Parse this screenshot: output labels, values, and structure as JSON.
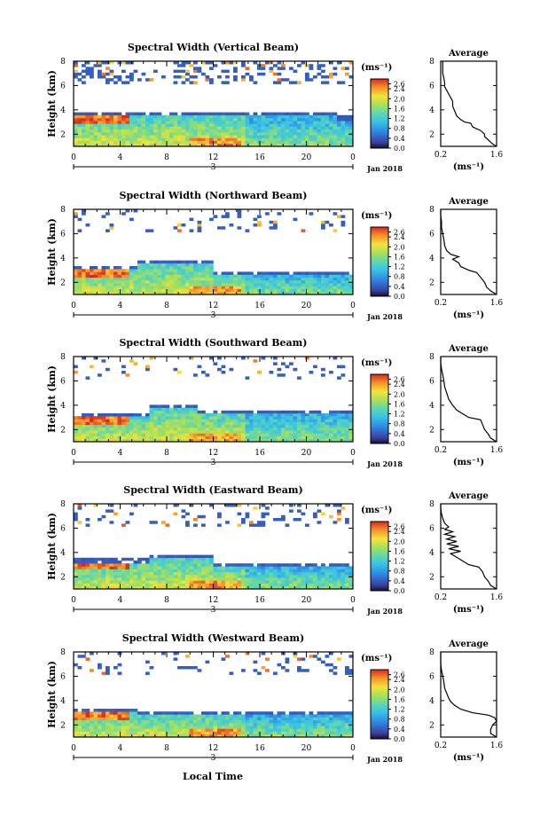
{
  "figure": {
    "x_axis_label": "Local Time",
    "date_label": "Jan 2018",
    "x_marker_label": "3",
    "colorbar_unit": "(ms⁻¹)",
    "avg_title": "Average",
    "avg_unit": "(ms⁻¹)"
  },
  "chart_data": [
    {
      "type": "heatmap",
      "title": "Spectral Width (Vertical Beam)",
      "ylabel": "Height (km)",
      "xticks": [
        "0",
        "4",
        "8",
        "12",
        "16",
        "20",
        "0"
      ],
      "yticks": [
        "2",
        "4",
        "6",
        "8"
      ],
      "colorbar_ticks": [
        "2.6",
        "2.4",
        "2.0",
        "1.6",
        "1.2",
        "0.8",
        "0.4",
        "0.0"
      ],
      "colorbar_range": [
        0.0,
        2.8
      ],
      "average_profile": {
        "xticks": [
          "0.2",
          "1.6"
        ],
        "yticks": [
          "2",
          "4",
          "6",
          "8"
        ],
        "xlim": [
          0.2,
          1.6
        ],
        "ylim": [
          1,
          8
        ],
        "height_km": [
          1.0,
          1.2,
          1.5,
          1.8,
          2.0,
          2.3,
          2.6,
          2.9,
          3.0,
          3.2,
          3.5,
          3.9,
          4.3,
          4.7,
          5.0,
          5.3,
          5.6,
          5.9,
          6.2,
          6.6,
          7.0,
          7.5,
          8.0
        ],
        "width_ms": [
          1.6,
          1.5,
          1.4,
          1.3,
          1.3,
          1.2,
          1.0,
          0.95,
          0.8,
          0.7,
          0.6,
          0.55,
          0.5,
          0.5,
          0.45,
          0.4,
          0.35,
          0.3,
          0.3,
          0.28,
          0.25,
          0.25,
          0.25
        ]
      }
    },
    {
      "type": "heatmap",
      "title": "Spectral Width (Northward Beam)",
      "ylabel": "Height (km)",
      "xticks": [
        "0",
        "4",
        "8",
        "12",
        "16",
        "20",
        "0"
      ],
      "yticks": [
        "2",
        "4",
        "6",
        "8"
      ],
      "colorbar_ticks": [
        "2.6",
        "2.4",
        "2.0",
        "1.6",
        "1.2",
        "0.8",
        "0.4",
        "0.0"
      ],
      "colorbar_range": [
        0.0,
        2.8
      ],
      "average_profile": {
        "xticks": [
          "0.2",
          "1.6"
        ],
        "yticks": [
          "2",
          "4",
          "6",
          "8"
        ],
        "xlim": [
          0.2,
          1.6
        ],
        "ylim": [
          1,
          8
        ],
        "height_km": [
          1.0,
          1.3,
          1.6,
          2.0,
          2.4,
          2.8,
          3.0,
          3.3,
          3.6,
          3.9,
          4.1,
          4.3,
          4.6,
          5.0,
          5.5,
          6.0,
          6.5,
          7.0,
          7.5,
          8.0
        ],
        "width_ms": [
          1.6,
          1.45,
          1.35,
          1.3,
          1.2,
          1.1,
          0.9,
          0.7,
          0.65,
          0.5,
          0.65,
          0.45,
          0.35,
          0.3,
          0.28,
          0.25,
          0.22,
          0.22,
          0.2,
          0.2
        ]
      }
    },
    {
      "type": "heatmap",
      "title": "Spectral Width (Southward Beam)",
      "ylabel": "Height (km)",
      "xticks": [
        "0",
        "4",
        "8",
        "12",
        "16",
        "20",
        "0"
      ],
      "yticks": [
        "2",
        "4",
        "6",
        "8"
      ],
      "colorbar_ticks": [
        "2.6",
        "2.4",
        "2.0",
        "1.6",
        "1.2",
        "0.8",
        "0.4",
        "0.0"
      ],
      "colorbar_range": [
        0.0,
        2.8
      ],
      "average_profile": {
        "xticks": [
          "0.2",
          "1.6"
        ],
        "yticks": [
          "2",
          "4",
          "6",
          "8"
        ],
        "xlim": [
          0.2,
          1.6
        ],
        "ylim": [
          1,
          8
        ],
        "height_km": [
          1.0,
          1.3,
          1.6,
          2.0,
          2.4,
          2.8,
          3.0,
          3.3,
          3.6,
          4.0,
          4.5,
          5.0,
          5.5,
          6.0,
          6.5,
          7.0,
          7.5,
          8.0
        ],
        "width_ms": [
          1.6,
          1.45,
          1.4,
          1.3,
          1.25,
          1.2,
          0.9,
          0.75,
          0.6,
          0.5,
          0.4,
          0.35,
          0.3,
          0.28,
          0.25,
          0.22,
          0.2,
          0.2
        ]
      }
    },
    {
      "type": "heatmap",
      "title": "Spectral Width (Eastward Beam)",
      "ylabel": "Height (km)",
      "xticks": [
        "0",
        "4",
        "8",
        "12",
        "16",
        "20",
        "0"
      ],
      "yticks": [
        "2",
        "4",
        "6",
        "8"
      ],
      "colorbar_ticks": [
        "2.6",
        "2.4",
        "2.0",
        "1.6",
        "1.2",
        "0.8",
        "0.4",
        "0.0"
      ],
      "colorbar_range": [
        0.0,
        2.8
      ],
      "average_profile": {
        "xticks": [
          "0.2",
          "1.6"
        ],
        "yticks": [
          "2",
          "4",
          "6",
          "8"
        ],
        "xlim": [
          0.2,
          1.6
        ],
        "ylim": [
          1,
          8
        ],
        "height_km": [
          1.0,
          1.3,
          1.6,
          2.0,
          2.4,
          2.8,
          3.0,
          3.3,
          3.6,
          3.9,
          4.1,
          4.3,
          4.5,
          4.7,
          4.9,
          5.1,
          5.3,
          5.5,
          5.7,
          5.9,
          6.1,
          6.4,
          6.8,
          7.2,
          7.6,
          8.0
        ],
        "width_ms": [
          1.6,
          1.45,
          1.4,
          1.3,
          1.25,
          1.15,
          0.9,
          0.75,
          0.6,
          0.45,
          0.7,
          0.4,
          0.65,
          0.35,
          0.6,
          0.35,
          0.55,
          0.3,
          0.5,
          0.3,
          0.4,
          0.3,
          0.25,
          0.22,
          0.2,
          0.2
        ]
      }
    },
    {
      "type": "heatmap",
      "title": "Spectral Width (Westward Beam)",
      "ylabel": "Height (km)",
      "xticks": [
        "0",
        "4",
        "8",
        "12",
        "16",
        "20",
        "0"
      ],
      "yticks": [
        "2",
        "4",
        "6",
        "8"
      ],
      "colorbar_ticks": [
        "2.6",
        "2.4",
        "2.0",
        "1.6",
        "1.2",
        "0.8",
        "0.4",
        "0.0"
      ],
      "colorbar_range": [
        0.0,
        2.8
      ],
      "average_profile": {
        "xticks": [
          "0.2",
          "1.6"
        ],
        "yticks": [
          "2",
          "4",
          "6",
          "8"
        ],
        "xlim": [
          0.2,
          1.6
        ],
        "ylim": [
          1,
          8
        ],
        "height_km": [
          1.0,
          1.3,
          1.6,
          2.0,
          2.3,
          2.6,
          2.8,
          3.0,
          3.3,
          3.6,
          3.9,
          4.2,
          4.6,
          5.0,
          5.5,
          6.0,
          6.5,
          7.0,
          7.5,
          8.0
        ],
        "width_ms": [
          1.6,
          1.45,
          1.45,
          1.5,
          1.6,
          1.55,
          1.4,
          1.0,
          0.7,
          0.55,
          0.45,
          0.4,
          0.35,
          0.3,
          0.28,
          0.25,
          0.22,
          0.2,
          0.2,
          0.2
        ]
      }
    }
  ]
}
